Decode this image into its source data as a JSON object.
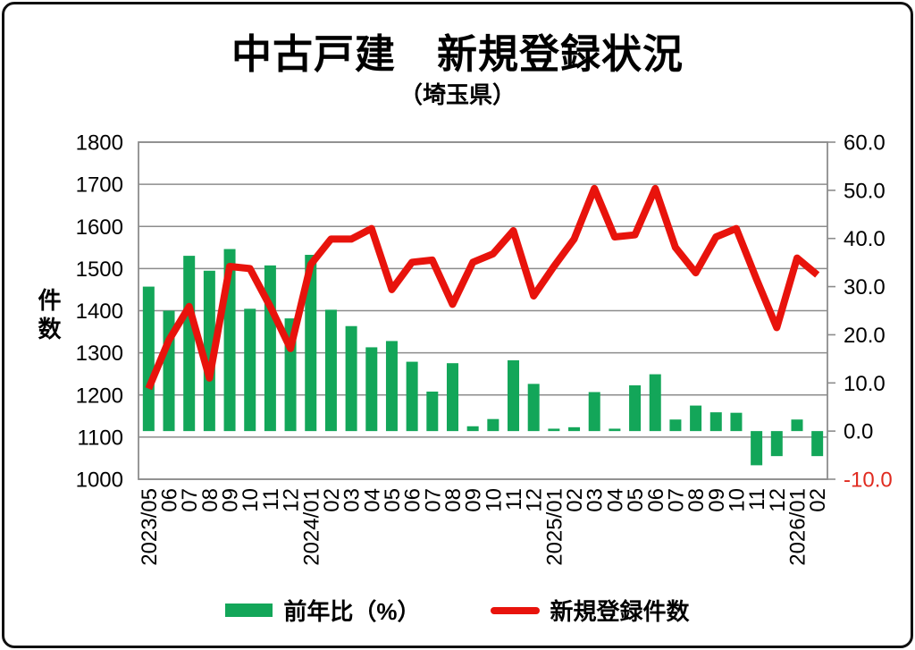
{
  "title": "中古戸建　新規登録状況",
  "subtitle": "（埼玉県）",
  "y_left_label": "件数",
  "legend": {
    "bar_label": "前年比（%）",
    "line_label": "新規登録件数"
  },
  "colors": {
    "bar": "#13a659",
    "line": "#e8130c",
    "grid": "#8c8c8c",
    "axis_text": "#000000",
    "negative_tick": "#e02b20",
    "background": "#ffffff"
  },
  "axes": {
    "left_ticks": [
      "1800",
      "1700",
      "1600",
      "1500",
      "1400",
      "1300",
      "1200",
      "1100",
      "1000"
    ],
    "right_ticks": [
      "60.0",
      "50.0",
      "40.0",
      "30.0",
      "20.0",
      "10.0",
      "0.0",
      "-10.0"
    ],
    "left_range": [
      1000,
      1800
    ],
    "right_range": [
      -10,
      60
    ]
  },
  "chart_data": {
    "type": "bar+line combo",
    "title": "中古戸建　新規登録状況（埼玉県）",
    "ylabel_left": "件数",
    "ylim_left": [
      1000,
      1800
    ],
    "ylim_right": [
      -10,
      60
    ],
    "grid": true,
    "legend_position": "bottom",
    "categories": [
      "2023/05",
      "06",
      "07",
      "08",
      "09",
      "10",
      "11",
      "12",
      "2024/01",
      "02",
      "03",
      "04",
      "05",
      "06",
      "07",
      "08",
      "09",
      "10",
      "11",
      "12",
      "2025/01",
      "02",
      "03",
      "04",
      "05",
      "06",
      "07",
      "08",
      "09",
      "10",
      "11",
      "12",
      "2026/01",
      "02"
    ],
    "series": [
      {
        "name": "前年比（%）",
        "type": "bar",
        "axis": "right",
        "values": [
          30.0,
          25.0,
          36.4,
          33.3,
          37.8,
          25.4,
          34.4,
          23.4,
          36.6,
          25.2,
          21.8,
          17.4,
          18.7,
          14.4,
          8.2,
          14.1,
          1.0,
          2.5,
          14.7,
          9.8,
          0.5,
          0.8,
          8.1,
          0.5,
          9.5,
          11.8,
          2.4,
          5.3,
          3.9,
          3.8,
          -7.1,
          -5.2,
          2.4,
          -5.2
        ]
      },
      {
        "name": "新規登録件数",
        "type": "line",
        "axis": "left",
        "values": [
          1215,
          1330,
          1410,
          1240,
          1505,
          1500,
          1410,
          1310,
          1510,
          1570,
          1570,
          1595,
          1450,
          1515,
          1520,
          1415,
          1515,
          1535,
          1590,
          1435,
          1505,
          1570,
          1690,
          1575,
          1580,
          1690,
          1550,
          1490,
          1575,
          1595,
          1475,
          1360,
          1525,
          1485
        ]
      }
    ]
  }
}
